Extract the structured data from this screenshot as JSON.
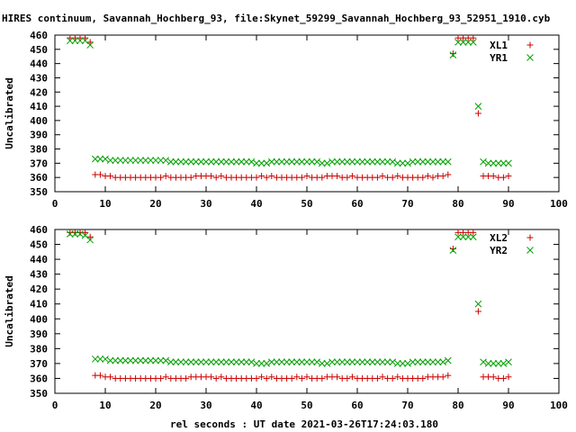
{
  "title": "HIRES continuum, Savannah_Hochberg_93, file:Skynet_59299_Savannah_Hochberg_93_52951_1910.cyb",
  "xlabel": "rel seconds : UT date 2021-03-26T17:24:03.180",
  "colors": {
    "x_series": "#cc0000",
    "y_series": "#00a000"
  },
  "chart_data": [
    {
      "type": "scatter",
      "ylabel": "Uncalibrated",
      "xlim": [
        0,
        100
      ],
      "ylim": [
        350,
        460
      ],
      "xticks": [
        0,
        10,
        20,
        30,
        40,
        50,
        60,
        70,
        80,
        90,
        100
      ],
      "yticks": [
        350,
        360,
        370,
        380,
        390,
        400,
        410,
        420,
        430,
        440,
        450,
        460
      ],
      "series": [
        {
          "name": "XL1",
          "marker": "plus",
          "x": [
            3,
            4,
            5,
            6,
            7,
            8,
            9,
            10,
            11,
            12,
            13,
            14,
            15,
            16,
            17,
            18,
            19,
            20,
            21,
            22,
            23,
            24,
            25,
            26,
            27,
            28,
            29,
            30,
            31,
            32,
            33,
            34,
            35,
            36,
            37,
            38,
            39,
            40,
            41,
            42,
            43,
            44,
            45,
            46,
            47,
            48,
            49,
            50,
            51,
            52,
            53,
            54,
            55,
            56,
            57,
            58,
            59,
            60,
            61,
            62,
            63,
            64,
            65,
            66,
            67,
            68,
            69,
            70,
            71,
            72,
            73,
            74,
            75,
            76,
            77,
            78,
            79,
            80,
            81,
            82,
            83,
            84,
            85,
            86,
            87,
            88,
            89,
            90
          ],
          "y": [
            458,
            458,
            458,
            458,
            455,
            362,
            362,
            361,
            361,
            360,
            360,
            360,
            360,
            360,
            360,
            360,
            360,
            360,
            360,
            361,
            360,
            360,
            360,
            360,
            360,
            361,
            361,
            361,
            361,
            360,
            361,
            360,
            360,
            360,
            360,
            360,
            360,
            360,
            361,
            360,
            361,
            360,
            360,
            360,
            360,
            360,
            360,
            361,
            360,
            360,
            360,
            361,
            361,
            361,
            360,
            360,
            361,
            360,
            360,
            360,
            360,
            360,
            361,
            360,
            360,
            361,
            360,
            360,
            360,
            360,
            360,
            361,
            360,
            361,
            361,
            362,
            447,
            458,
            458,
            458,
            458,
            405,
            361,
            361,
            361,
            360,
            360,
            361
          ]
        },
        {
          "name": "YR1",
          "marker": "cross",
          "x": [
            3,
            4,
            5,
            6,
            7,
            8,
            9,
            10,
            11,
            12,
            13,
            14,
            15,
            16,
            17,
            18,
            19,
            20,
            21,
            22,
            23,
            24,
            25,
            26,
            27,
            28,
            29,
            30,
            31,
            32,
            33,
            34,
            35,
            36,
            37,
            38,
            39,
            40,
            41,
            42,
            43,
            44,
            45,
            46,
            47,
            48,
            49,
            50,
            51,
            52,
            53,
            54,
            55,
            56,
            57,
            58,
            59,
            60,
            61,
            62,
            63,
            64,
            65,
            66,
            67,
            68,
            69,
            70,
            71,
            72,
            73,
            74,
            75,
            76,
            77,
            78,
            79,
            80,
            81,
            82,
            83,
            84,
            85,
            86,
            87,
            88,
            89,
            90
          ],
          "y": [
            456,
            456,
            456,
            456,
            453,
            373,
            373,
            373,
            372,
            372,
            372,
            372,
            372,
            372,
            372,
            372,
            372,
            372,
            372,
            372,
            371,
            371,
            371,
            371,
            371,
            371,
            371,
            371,
            371,
            371,
            371,
            371,
            371,
            371,
            371,
            371,
            371,
            370,
            370,
            370,
            371,
            371,
            371,
            371,
            371,
            371,
            371,
            371,
            371,
            371,
            370,
            370,
            371,
            371,
            371,
            371,
            371,
            371,
            371,
            371,
            371,
            371,
            371,
            371,
            371,
            370,
            370,
            370,
            371,
            371,
            371,
            371,
            371,
            371,
            371,
            371,
            446,
            455,
            455,
            455,
            455,
            410,
            371,
            370,
            370,
            370,
            370,
            370
          ]
        }
      ]
    },
    {
      "type": "scatter",
      "ylabel": "Uncalibrated",
      "xlim": [
        0,
        100
      ],
      "ylim": [
        350,
        460
      ],
      "xticks": [
        0,
        10,
        20,
        30,
        40,
        50,
        60,
        70,
        80,
        90,
        100
      ],
      "yticks": [
        350,
        360,
        370,
        380,
        390,
        400,
        410,
        420,
        430,
        440,
        450,
        460
      ],
      "series": [
        {
          "name": "XL2",
          "marker": "plus",
          "x": [
            3,
            4,
            5,
            6,
            7,
            8,
            9,
            10,
            11,
            12,
            13,
            14,
            15,
            16,
            17,
            18,
            19,
            20,
            21,
            22,
            23,
            24,
            25,
            26,
            27,
            28,
            29,
            30,
            31,
            32,
            33,
            34,
            35,
            36,
            37,
            38,
            39,
            40,
            41,
            42,
            43,
            44,
            45,
            46,
            47,
            48,
            49,
            50,
            51,
            52,
            53,
            54,
            55,
            56,
            57,
            58,
            59,
            60,
            61,
            62,
            63,
            64,
            65,
            66,
            67,
            68,
            69,
            70,
            71,
            72,
            73,
            74,
            75,
            76,
            77,
            78,
            79,
            80,
            81,
            82,
            83,
            84,
            85,
            86,
            87,
            88,
            89,
            90
          ],
          "y": [
            458,
            458,
            458,
            458,
            455,
            362,
            362,
            361,
            361,
            360,
            360,
            360,
            360,
            360,
            360,
            360,
            360,
            360,
            360,
            361,
            360,
            360,
            360,
            360,
            361,
            361,
            361,
            361,
            361,
            360,
            361,
            360,
            360,
            360,
            360,
            360,
            360,
            360,
            361,
            360,
            361,
            360,
            360,
            360,
            360,
            361,
            360,
            361,
            360,
            360,
            360,
            361,
            361,
            361,
            360,
            360,
            361,
            360,
            360,
            360,
            360,
            360,
            361,
            360,
            360,
            361,
            360,
            360,
            360,
            360,
            360,
            361,
            361,
            361,
            361,
            362,
            447,
            458,
            458,
            458,
            458,
            405,
            361,
            361,
            361,
            360,
            360,
            361
          ]
        },
        {
          "name": "YR2",
          "marker": "cross",
          "x": [
            3,
            4,
            5,
            6,
            7,
            8,
            9,
            10,
            11,
            12,
            13,
            14,
            15,
            16,
            17,
            18,
            19,
            20,
            21,
            22,
            23,
            24,
            25,
            26,
            27,
            28,
            29,
            30,
            31,
            32,
            33,
            34,
            35,
            36,
            37,
            38,
            39,
            40,
            41,
            42,
            43,
            44,
            45,
            46,
            47,
            48,
            49,
            50,
            51,
            52,
            53,
            54,
            55,
            56,
            57,
            58,
            59,
            60,
            61,
            62,
            63,
            64,
            65,
            66,
            67,
            68,
            69,
            70,
            71,
            72,
            73,
            74,
            75,
            76,
            77,
            78,
            79,
            80,
            81,
            82,
            83,
            84,
            85,
            86,
            87,
            88,
            89,
            90
          ],
          "y": [
            457,
            457,
            457,
            456,
            453,
            373,
            373,
            373,
            372,
            372,
            372,
            372,
            372,
            372,
            372,
            372,
            372,
            372,
            372,
            372,
            371,
            371,
            371,
            371,
            371,
            371,
            371,
            371,
            371,
            371,
            371,
            371,
            371,
            371,
            371,
            371,
            371,
            370,
            370,
            370,
            371,
            371,
            371,
            371,
            371,
            371,
            371,
            371,
            371,
            371,
            370,
            370,
            371,
            371,
            371,
            371,
            371,
            371,
            371,
            371,
            371,
            371,
            371,
            371,
            371,
            370,
            370,
            370,
            371,
            371,
            371,
            371,
            371,
            371,
            371,
            372,
            446,
            455,
            455,
            455,
            455,
            410,
            371,
            370,
            370,
            370,
            370,
            371
          ]
        }
      ]
    }
  ]
}
